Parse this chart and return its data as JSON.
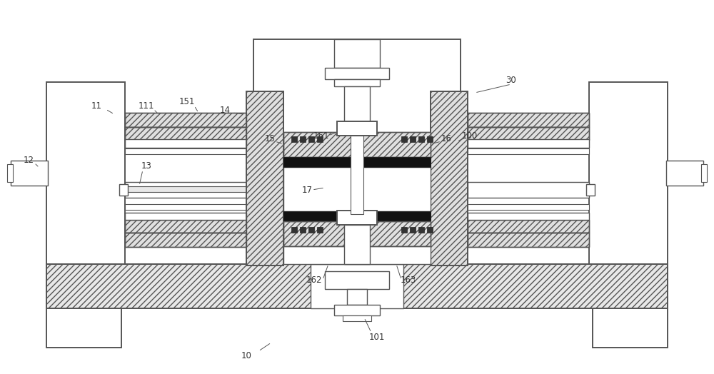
{
  "bg_color": "#ffffff",
  "line_color": "#555555",
  "hatch_light": "#e8e8e8",
  "dark_fill": "#1a1a1a",
  "mid_dark": "#333333"
}
